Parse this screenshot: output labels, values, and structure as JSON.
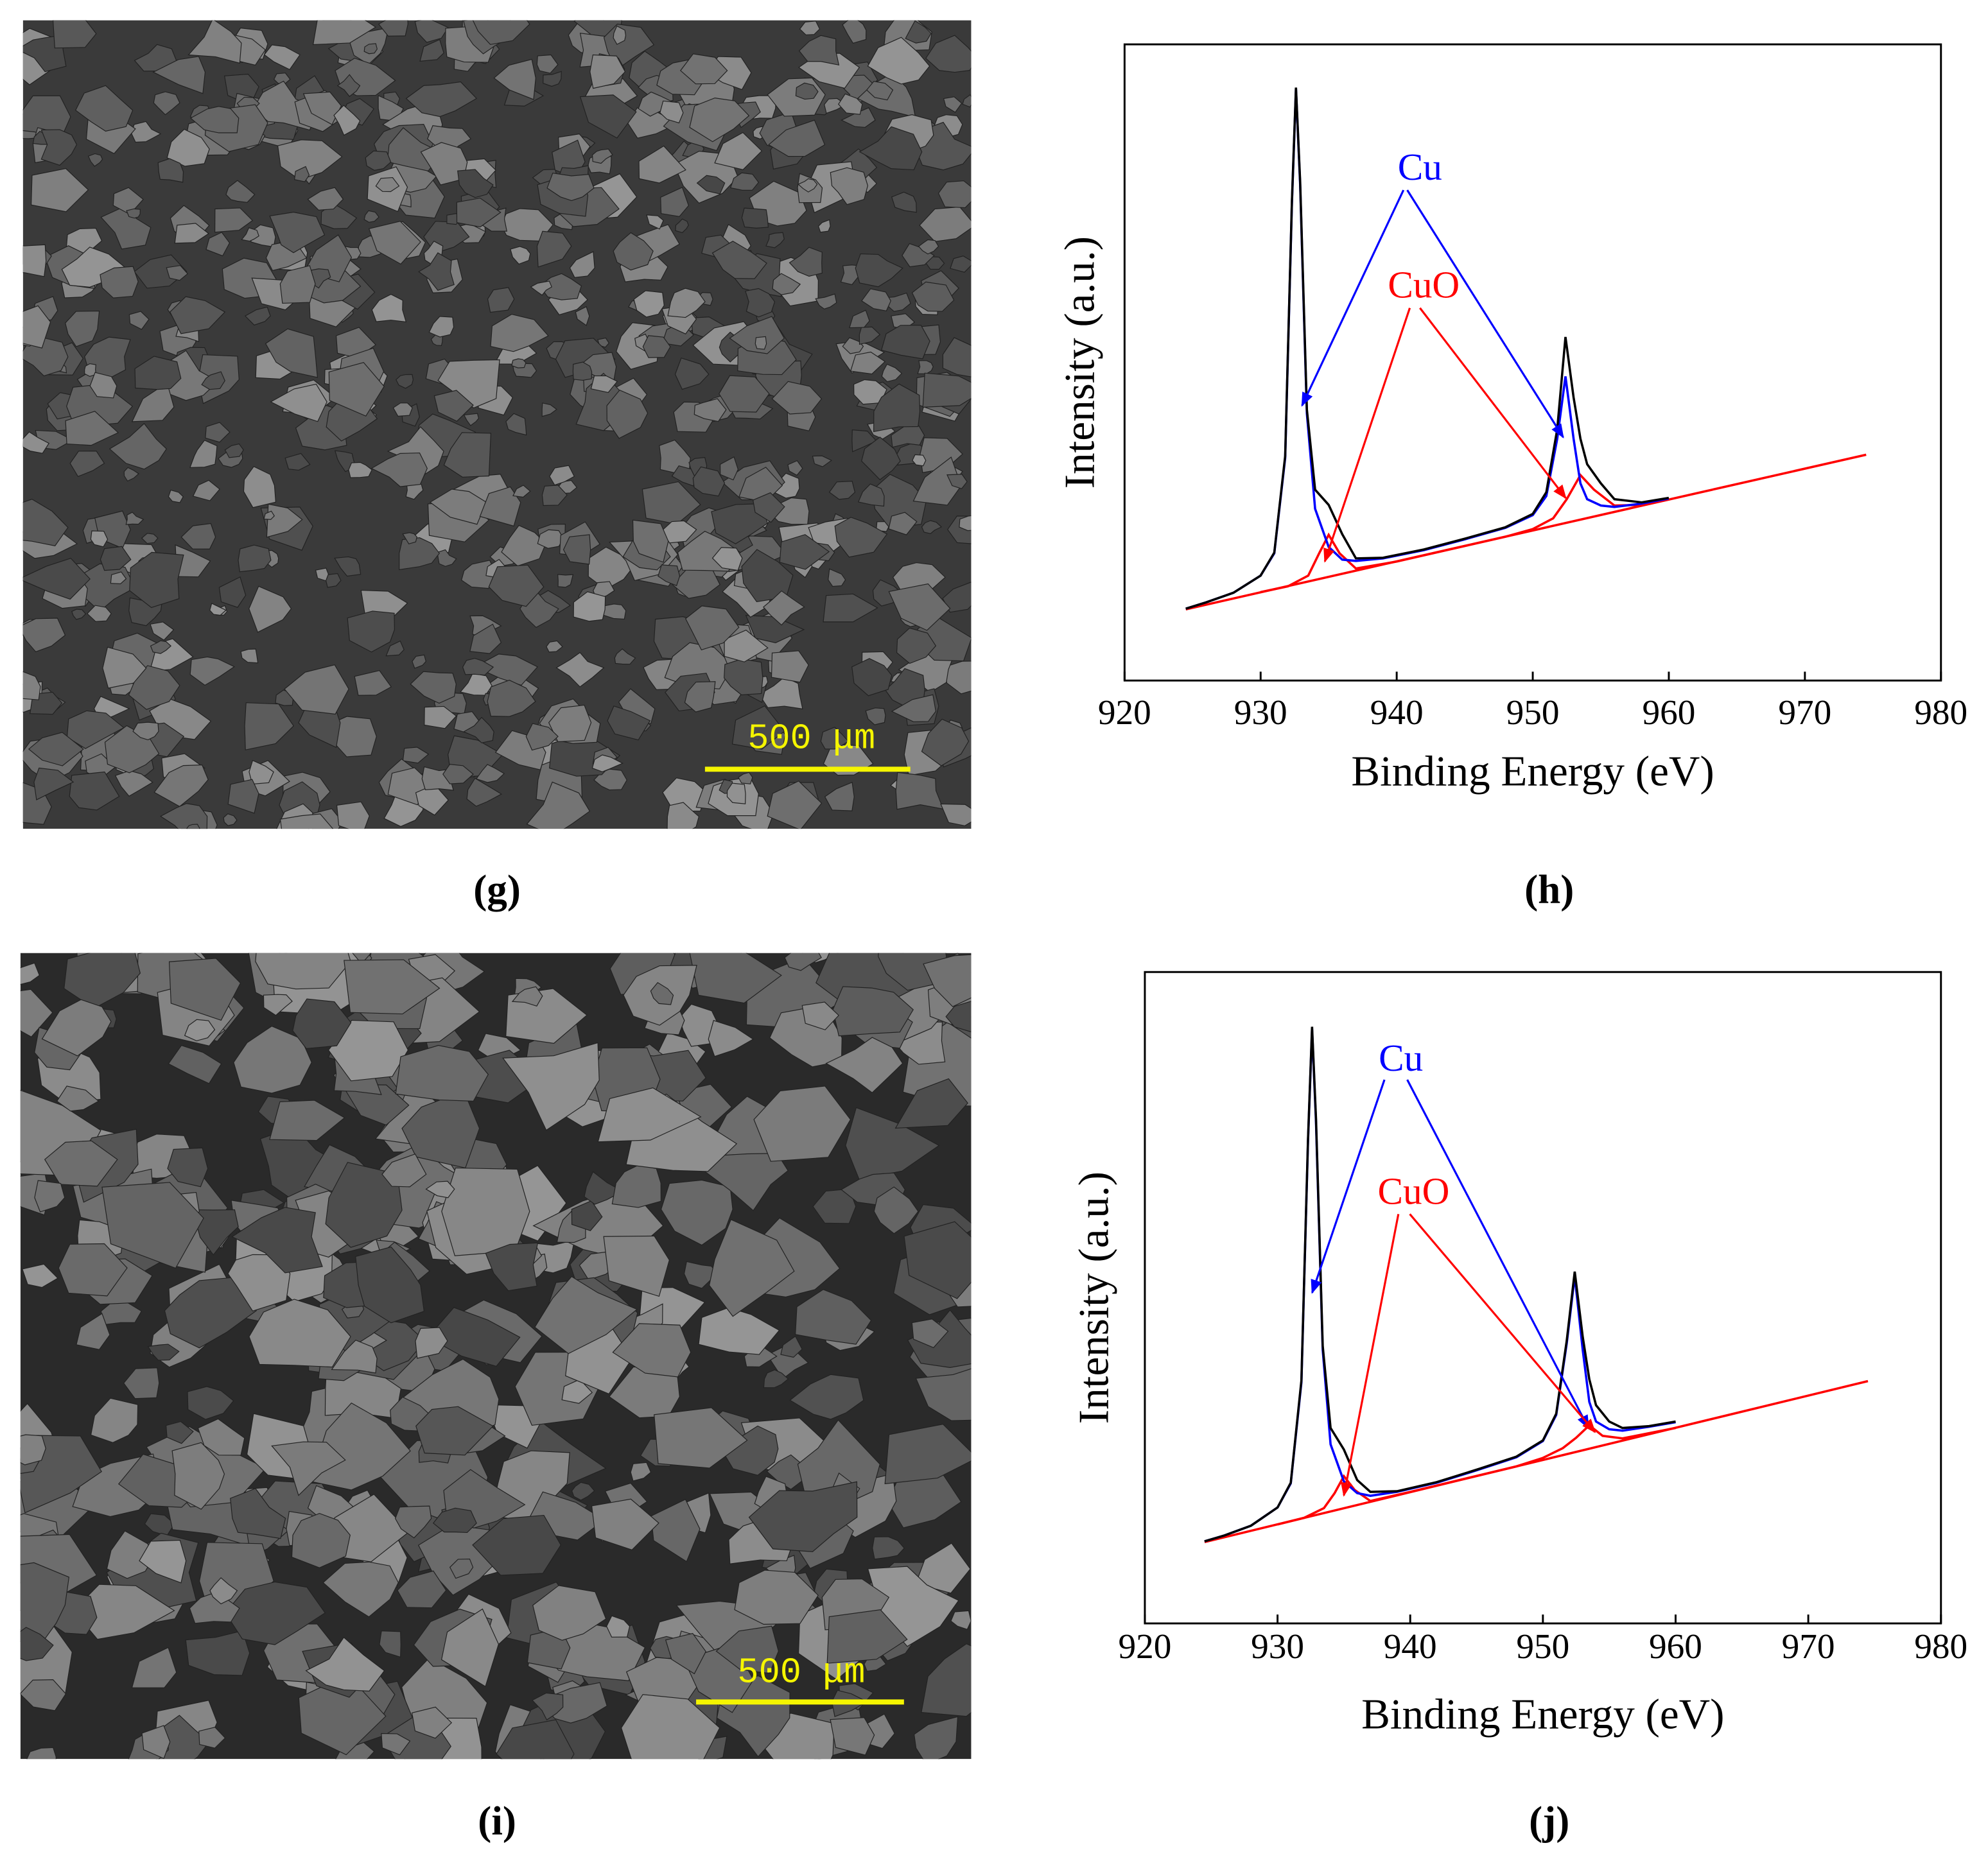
{
  "chart_data": [
    {
      "type": "line",
      "caption": "(h)",
      "x_label": "Binding Energy (eV)",
      "y_label": "Intensity (a.u.)",
      "xlim": [
        920,
        980
      ],
      "xticks": [
        920,
        930,
        940,
        950,
        960,
        970,
        980
      ],
      "ylim": [
        0,
        100
      ],
      "annotations": [
        {
          "text": "Cu",
          "color": "#0000ff"
        },
        {
          "text": "CuO",
          "color": "#ff0000"
        }
      ],
      "series": [
        {
          "color": "#ff0000",
          "x": [
            924.5,
            974.5
          ],
          "values": [
            11.2,
            35.5
          ]
        },
        {
          "color": "#ff0000",
          "x": [
            930,
            932,
            933.5,
            934.3,
            935,
            935.8,
            937,
            940,
            948,
            950,
            951.5,
            952.5,
            953.5,
            954.5,
            956,
            958,
            960
          ],
          "values": [
            13.9,
            14.8,
            16.5,
            20,
            22.9,
            20,
            17.6,
            18.7,
            22.6,
            23.8,
            25.5,
            28.5,
            32.3,
            30,
            27.5,
            27.6,
            28.5
          ]
        },
        {
          "color": "#0000ff",
          "x": [
            924.5,
            926,
            928,
            930,
            931,
            931.8,
            932.3,
            932.6,
            932.9,
            933.4,
            934,
            935,
            936,
            937,
            939,
            942,
            945,
            948,
            950,
            951,
            951.8,
            952.4,
            953,
            953.5,
            954,
            955,
            956,
            958,
            960
          ],
          "values": [
            11.3,
            12.3,
            13.8,
            16.5,
            20,
            35,
            75,
            93,
            78,
            42,
            27,
            21,
            19,
            18.8,
            19.2,
            20.5,
            22.2,
            24,
            26,
            29,
            38,
            47.8,
            38,
            31,
            28.5,
            27.5,
            27.3,
            27.8,
            28.6
          ]
        },
        {
          "color": "#000000",
          "x": [
            924.5,
            926,
            928,
            930,
            931,
            931.8,
            932.3,
            932.6,
            932.9,
            933.4,
            934,
            935,
            936,
            937,
            939,
            942,
            945,
            948,
            950,
            951,
            951.8,
            952.4,
            953,
            953.5,
            954,
            955,
            956,
            958,
            960
          ],
          "values": [
            11.3,
            12.3,
            13.8,
            16.5,
            20.1,
            35.3,
            75.3,
            93.2,
            78.4,
            42.6,
            30,
            27.6,
            23,
            19.2,
            19.3,
            20.6,
            22.3,
            24.1,
            26.2,
            29.6,
            39.5,
            54,
            44.5,
            38,
            34,
            31,
            28.5,
            28,
            28.7
          ]
        }
      ]
    },
    {
      "type": "line",
      "caption": "(j)",
      "x_label": "Binding Energy (eV)",
      "y_label": "Intensity (a.u.)",
      "xlim": [
        920,
        980
      ],
      "xticks": [
        920,
        930,
        940,
        950,
        960,
        970,
        980
      ],
      "ylim": [
        0,
        100
      ],
      "annotations": [
        {
          "text": "Cu",
          "color": "#0000ff"
        },
        {
          "text": "CuO",
          "color": "#ff0000"
        }
      ],
      "series": [
        {
          "color": "#ff0000",
          "x": [
            924.5,
            974.5
          ],
          "values": [
            12.5,
            37.2
          ]
        },
        {
          "color": "#ff0000",
          "x": [
            930,
            932,
            933.5,
            934.3,
            935,
            935.8,
            937,
            940,
            948,
            950,
            951.5,
            952.5,
            953.5,
            954.5,
            956,
            958,
            960
          ],
          "values": [
            15.2,
            16.2,
            17.7,
            20,
            22.6,
            20.5,
            18.8,
            20.2,
            24.1,
            25.4,
            26.9,
            28.5,
            30.4,
            28.8,
            28.4,
            29.2,
            30
          ]
        },
        {
          "color": "#0000ff",
          "x": [
            924.5,
            926,
            928,
            930,
            931,
            931.8,
            932.3,
            932.6,
            932.9,
            933.4,
            934,
            935,
            936,
            937,
            939,
            942,
            945,
            948,
            950,
            951,
            951.8,
            952.4,
            953,
            953.5,
            954,
            955,
            956,
            958,
            960
          ],
          "values": [
            12.6,
            13.5,
            15,
            17.8,
            21.5,
            37,
            74,
            91.2,
            77,
            42,
            27.5,
            21.8,
            20,
            19.6,
            20.2,
            21.6,
            23.5,
            25.5,
            28,
            32,
            43,
            53.3,
            42,
            34,
            31,
            29.8,
            29.6,
            30.2,
            30.9
          ]
        },
        {
          "color": "#000000",
          "x": [
            924.5,
            926,
            928,
            930,
            931,
            931.8,
            932.3,
            932.6,
            932.9,
            933.4,
            934,
            935,
            936,
            937,
            939,
            942,
            945,
            948,
            950,
            951,
            951.8,
            952.4,
            953,
            953.5,
            954,
            955,
            956,
            958,
            960
          ],
          "values": [
            12.6,
            13.5,
            15,
            17.8,
            21.6,
            37.3,
            74.3,
            91.6,
            77.5,
            42.6,
            30,
            26.7,
            22,
            20.2,
            20.3,
            21.7,
            23.6,
            25.6,
            28.1,
            32.2,
            43.4,
            54,
            44,
            37.5,
            33.5,
            31,
            30,
            30.3,
            31
          ]
        }
      ]
    }
  ],
  "images": [
    {
      "scale_label": "500 μm",
      "caption": "(g)"
    },
    {
      "scale_label": "500 μm",
      "caption": "(i)"
    }
  ]
}
